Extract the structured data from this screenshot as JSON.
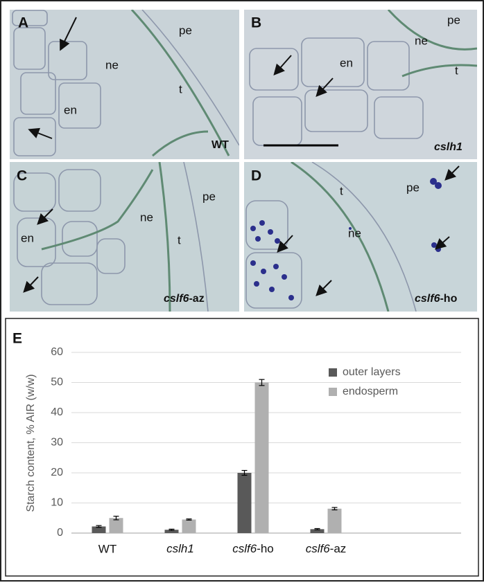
{
  "panels": [
    {
      "label": "A",
      "annotations": [
        "pe",
        "ne",
        "t",
        "en"
      ],
      "genotype": "WT"
    },
    {
      "label": "B",
      "annotations": [
        "pe",
        "ne",
        "en",
        "t"
      ],
      "genotype": "cslh1"
    },
    {
      "label": "C",
      "annotations": [
        "pe",
        "ne",
        "t",
        "en"
      ],
      "genotype": "cslf6-az"
    },
    {
      "label": "D",
      "annotations": [
        "t",
        "pe",
        "ne"
      ],
      "genotype": "cslf6-ho"
    }
  ],
  "chart_data": {
    "type": "bar",
    "panel_label": "E",
    "ylabel": "Starch content, % AIR (w/w)",
    "categories": [
      "WT",
      "cslh1",
      "cslf6-ho",
      "cslf6-az"
    ],
    "series": [
      {
        "name": "outer layers",
        "color": "#595959",
        "values": [
          2.2,
          1.1,
          20,
          1.3
        ],
        "errors": [
          0.3,
          0.2,
          0.8,
          0.2
        ]
      },
      {
        "name": "endosperm",
        "color": "#b0b0b0",
        "values": [
          5,
          4.5,
          50,
          8.1
        ],
        "errors": [
          0.6,
          0.2,
          1.0,
          0.4
        ]
      }
    ],
    "ylim": [
      0,
      60
    ],
    "yticks": [
      0,
      10,
      20,
      30,
      40,
      50,
      60
    ],
    "grid": true,
    "legend": "upper right"
  }
}
